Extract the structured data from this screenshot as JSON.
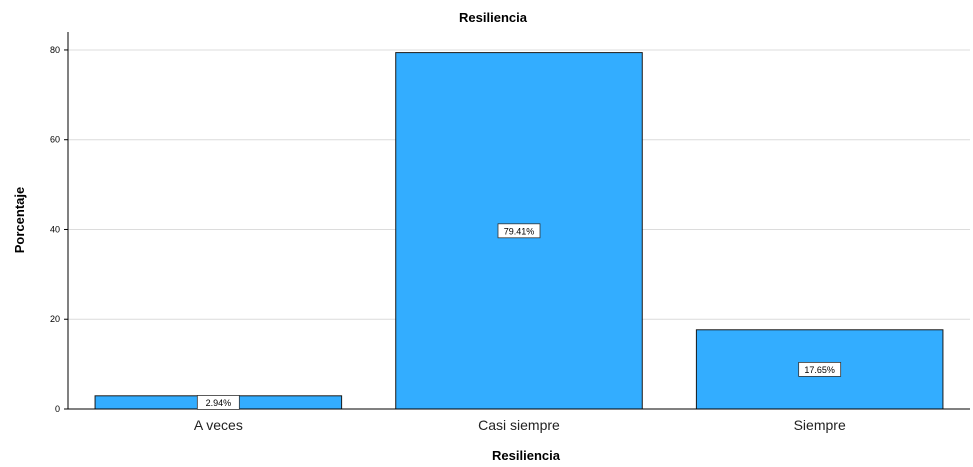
{
  "chart_data": {
    "type": "bar",
    "title": "Resiliencia",
    "xlabel": "Resiliencia",
    "ylabel": "Porcentaje",
    "categories": [
      "A veces",
      "Casi siempre",
      "Siempre"
    ],
    "values": [
      2.94,
      79.41,
      17.65
    ],
    "data_labels": [
      "2.94%",
      "79.41%",
      "17.65%"
    ],
    "ylim": [
      0,
      84
    ],
    "yticks": [
      0,
      20,
      40,
      60,
      80
    ],
    "ytick_labels": [
      "0",
      "20",
      "40",
      "60",
      "80"
    ],
    "grid": true,
    "bar_color": "#33adff",
    "bar_edge_color": "#1a1a1a"
  }
}
